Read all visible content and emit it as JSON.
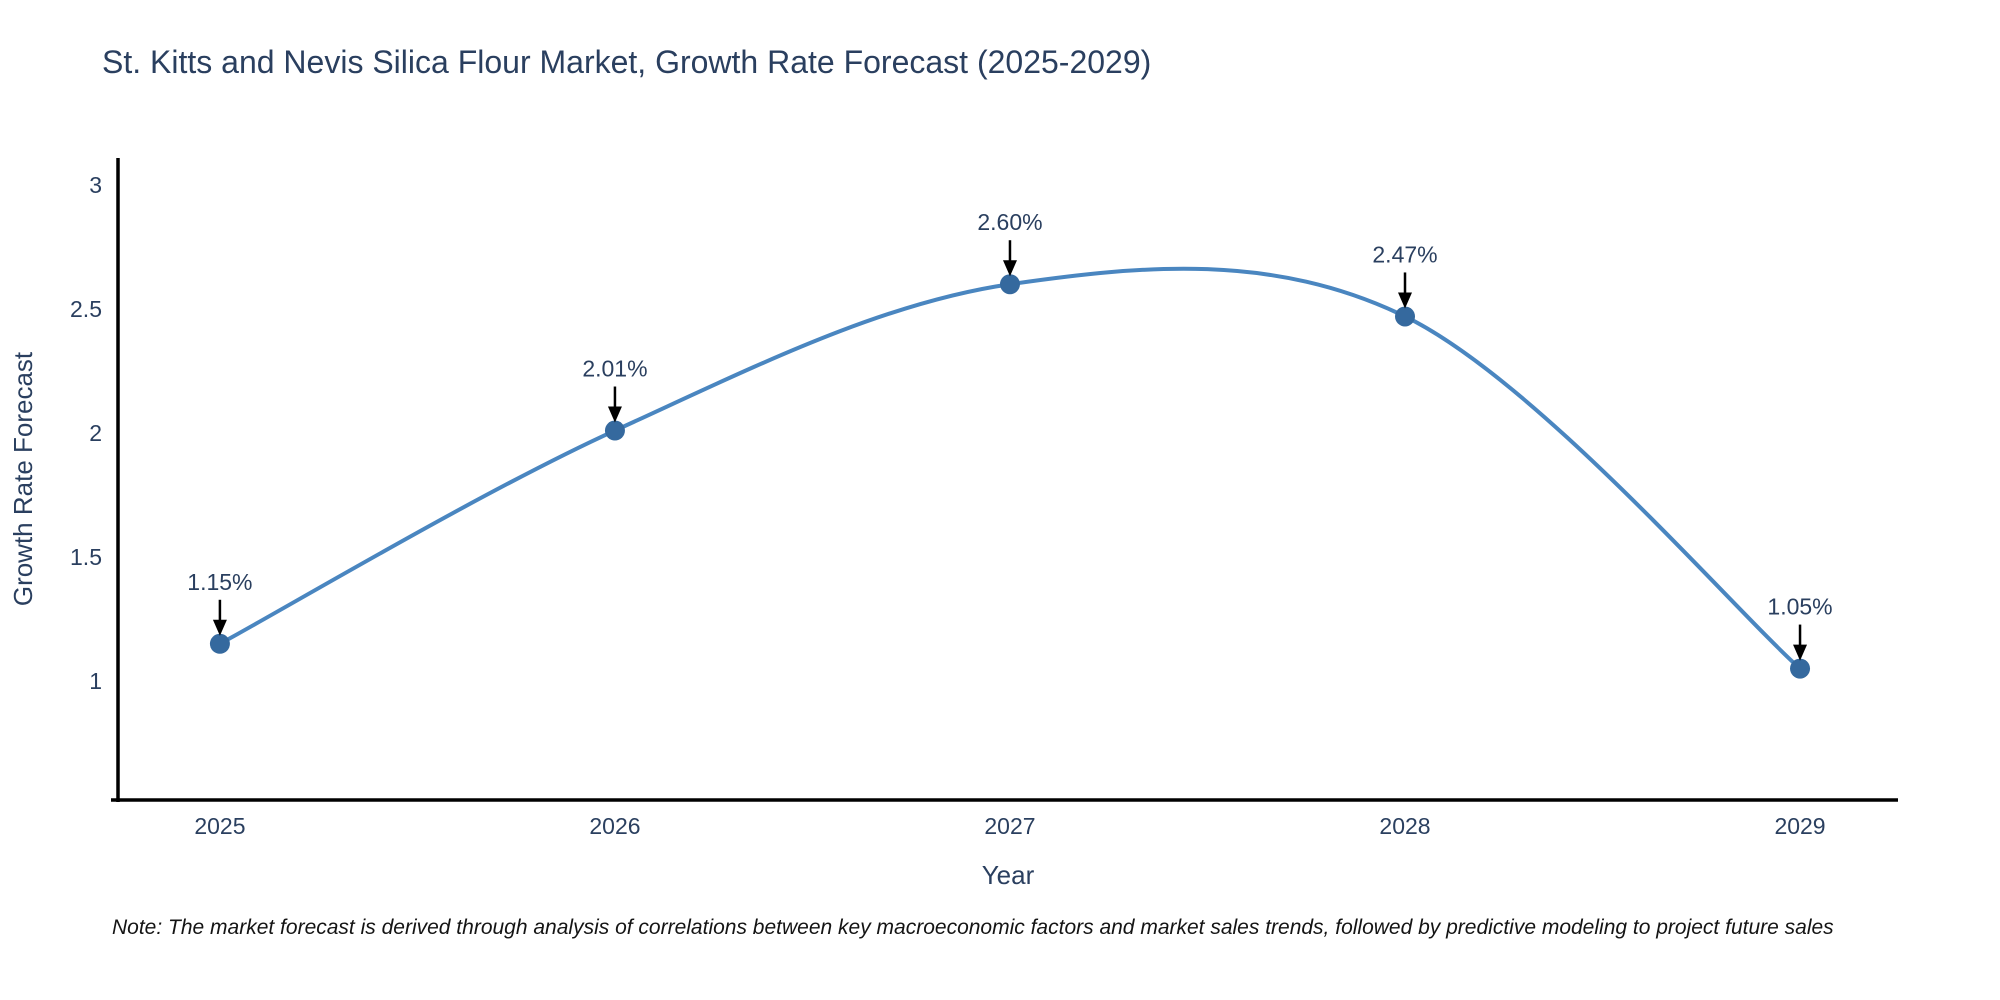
{
  "title": "St. Kitts and Nevis Silica Flour Market, Growth Rate Forecast (2025-2029)",
  "note": "Note: The market forecast is derived through analysis of correlations between key macroeconomic factors and market sales trends, followed by predictive modeling to project future sales",
  "colors": {
    "line": "#4a86c0",
    "marker": "#35699e",
    "axis": "#000000",
    "text": "#2a3f5f",
    "arrow": "#000000",
    "background": "#ffffff"
  },
  "chart_data": {
    "type": "line",
    "title": "St. Kitts and Nevis Silica Flour Market, Growth Rate Forecast (2025-2029)",
    "x": [
      2025,
      2026,
      2027,
      2028,
      2029
    ],
    "values": [
      1.15,
      2.01,
      2.6,
      2.47,
      1.05
    ],
    "point_labels": [
      "1.15%",
      "2.01%",
      "2.60%",
      "2.47%",
      "1.05%"
    ],
    "xlabel": "Year",
    "ylabel": "Growth Rate Forecast",
    "xtick_labels": [
      "2025",
      "2026",
      "2027",
      "2028",
      "2029"
    ],
    "ytick_values": [
      1,
      1.5,
      2,
      2.5,
      3
    ],
    "ytick_labels": [
      "1",
      "1.5",
      "2",
      "2.5",
      "3"
    ],
    "xlim": [
      2024.742,
      2029.248
    ],
    "ylim": [
      0.52,
      3.109
    ],
    "grid": false,
    "legend": null,
    "line_shape": "spline",
    "markers": true,
    "annotations_have_arrows": true
  }
}
